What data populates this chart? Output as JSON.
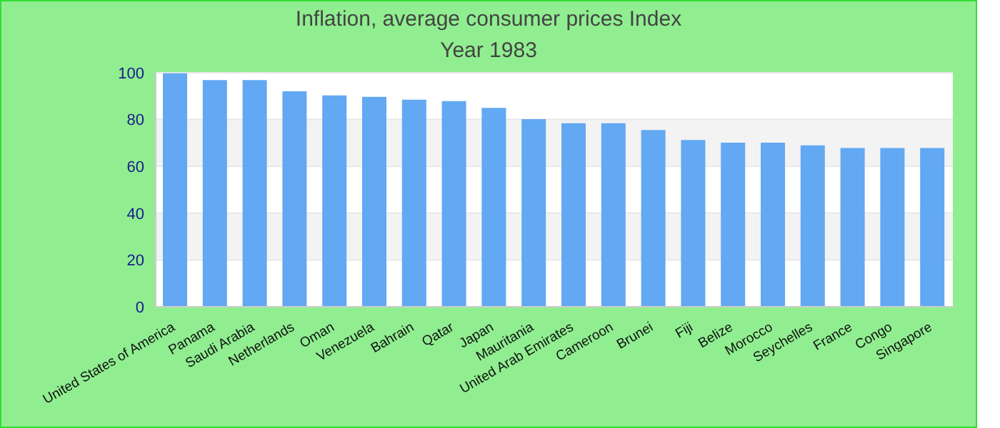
{
  "chart_data": {
    "type": "bar",
    "title": "Inflation, average consumer prices  Index",
    "subtitle": "Year 1983",
    "categories": [
      "United States of America",
      "Panama",
      "Saudi Arabia",
      "Netherlands",
      "Oman",
      "Venezuela",
      "Bahrain",
      "Qatar",
      "Japan",
      "Mauritania",
      "United Arab Emirates",
      "Cameroon",
      "Brunei",
      "Fiji",
      "Belize",
      "Morocco",
      "Seychelles",
      "France",
      "Congo",
      "Singapore"
    ],
    "values": [
      99.8,
      96.9,
      96.9,
      92.1,
      90.3,
      89.7,
      88.5,
      87.9,
      85.0,
      80.2,
      78.4,
      78.4,
      75.5,
      71.3,
      70.1,
      70.1,
      69.0,
      67.8,
      67.8,
      67.8
    ],
    "color": "#62a8f2",
    "ylim": [
      0,
      100
    ],
    "yticks": [
      0,
      20,
      40,
      60,
      80,
      100
    ],
    "grid": "y",
    "legend": false
  }
}
